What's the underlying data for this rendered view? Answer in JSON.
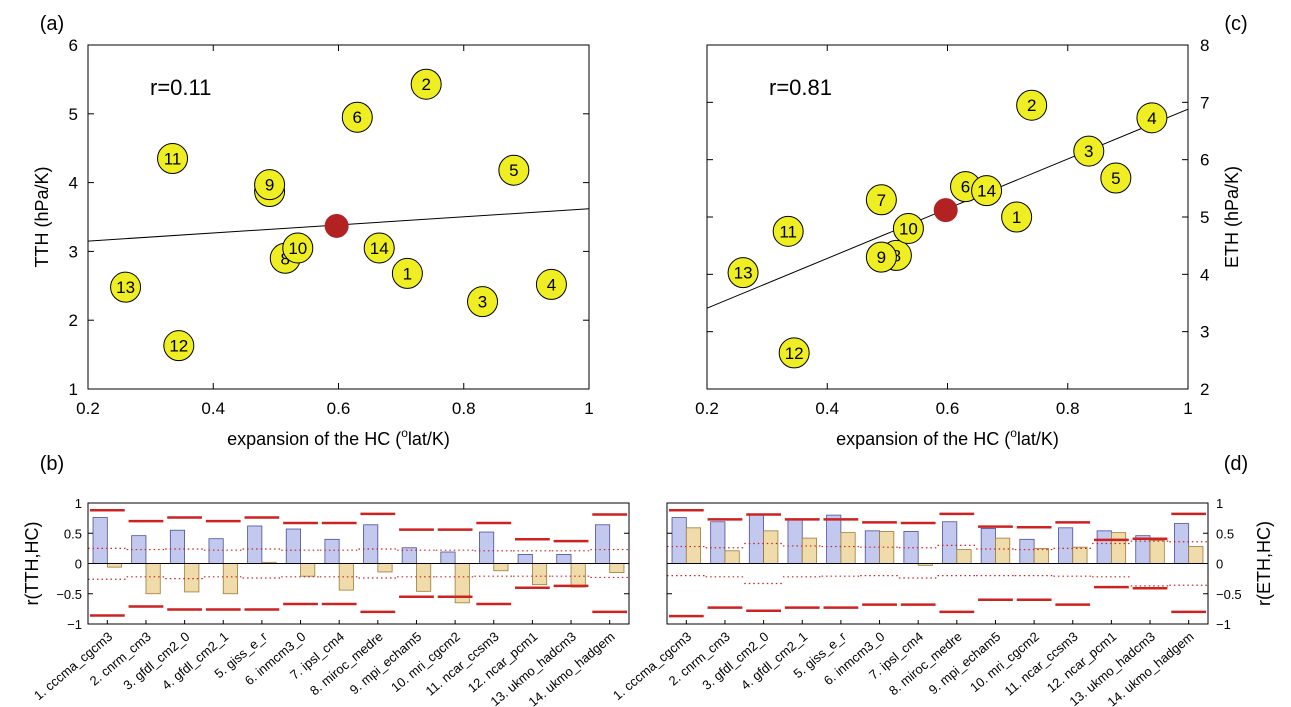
{
  "chart_data": [
    {
      "panel": "(a)",
      "type": "scatter",
      "xlabel": "expansion of the HC (",
      "xlabel_sup": "o",
      "xlabel_tail": "lat/K)",
      "ylabel": "TTH (hPa/K)",
      "xlim": [
        0.2,
        1
      ],
      "ylim": [
        1,
        6
      ],
      "xticks": [
        0.2,
        0.4,
        0.6,
        0.8,
        1
      ],
      "xtick_labels": [
        "0.2",
        "0.4",
        "0.6",
        "0.8",
        "1"
      ],
      "yticks": [
        1,
        2,
        3,
        4,
        5,
        6
      ],
      "ytick_labels": [
        "1",
        "2",
        "3",
        "4",
        "5",
        "6"
      ],
      "annotation": "r=0.11",
      "points": [
        {
          "label": "1",
          "x": 0.71,
          "y": 2.68
        },
        {
          "label": "2",
          "x": 0.74,
          "y": 5.43
        },
        {
          "label": "3",
          "x": 0.83,
          "y": 2.27
        },
        {
          "label": "4",
          "x": 0.94,
          "y": 2.52
        },
        {
          "label": "5",
          "x": 0.88,
          "y": 4.18
        },
        {
          "label": "6",
          "x": 0.63,
          "y": 4.95
        },
        {
          "label": "8",
          "x": 0.515,
          "y": 2.9
        },
        {
          "label": "",
          "x": 0.49,
          "y": 3.87
        },
        {
          "label": "9",
          "x": 0.49,
          "y": 3.97
        },
        {
          "label": "10",
          "x": 0.535,
          "y": 3.05
        },
        {
          "label": "11",
          "x": 0.335,
          "y": 4.35
        },
        {
          "label": "12",
          "x": 0.345,
          "y": 1.63
        },
        {
          "label": "13",
          "x": 0.26,
          "y": 2.48
        },
        {
          "label": "14",
          "x": 0.665,
          "y": 3.05
        }
      ],
      "mean_point": {
        "x": 0.597,
        "y": 3.37,
        "color": "#b22222"
      },
      "fit_line": {
        "x": [
          0.2,
          1
        ],
        "y": [
          3.15,
          3.62
        ]
      },
      "marker_color": "#eeee22"
    },
    {
      "panel": "(c)",
      "type": "scatter",
      "xlabel": "expansion of the HC (",
      "xlabel_sup": "o",
      "xlabel_tail": "lat/K)",
      "ylabel": "ETH (hPa/K)",
      "xlim": [
        0.2,
        1
      ],
      "ylim": [
        2,
        8
      ],
      "xticks": [
        0.2,
        0.4,
        0.6,
        0.8,
        1
      ],
      "xtick_labels": [
        "0.2",
        "0.4",
        "0.6",
        "0.8",
        "1"
      ],
      "yticks": [
        2,
        3,
        4,
        5,
        6,
        7,
        8
      ],
      "ytick_labels": [
        "2",
        "3",
        "4",
        "5",
        "6",
        "7",
        "8"
      ],
      "annotation": "r=0.81",
      "points": [
        {
          "label": "1",
          "x": 0.715,
          "y": 5.0
        },
        {
          "label": "2",
          "x": 0.74,
          "y": 6.95
        },
        {
          "label": "3",
          "x": 0.835,
          "y": 6.15
        },
        {
          "label": "4",
          "x": 0.94,
          "y": 6.73
        },
        {
          "label": "5",
          "x": 0.88,
          "y": 5.68
        },
        {
          "label": "6",
          "x": 0.63,
          "y": 5.53
        },
        {
          "label": "7",
          "x": 0.49,
          "y": 5.3
        },
        {
          "label": "8",
          "x": 0.515,
          "y": 4.33
        },
        {
          "label": "9",
          "x": 0.49,
          "y": 4.3
        },
        {
          "label": "10",
          "x": 0.535,
          "y": 4.8
        },
        {
          "label": "11",
          "x": 0.335,
          "y": 4.75
        },
        {
          "label": "12",
          "x": 0.345,
          "y": 2.63
        },
        {
          "label": "13",
          "x": 0.26,
          "y": 4.03
        },
        {
          "label": "14",
          "x": 0.665,
          "y": 5.46
        }
      ],
      "mean_point": {
        "x": 0.597,
        "y": 5.12,
        "color": "#b22222"
      },
      "fit_line": {
        "x": [
          0.2,
          1
        ],
        "y": [
          3.41,
          6.88
        ]
      },
      "marker_color": "#eeee22"
    },
    {
      "panel": "(b)",
      "type": "bar",
      "ylabel": "r(TTH,HC)",
      "ylim": [
        -1,
        1
      ],
      "yticks": [
        -1,
        -0.5,
        0,
        0.5,
        1
      ],
      "ytick_labels": [
        "−1",
        "−0.5",
        "0",
        "0.5",
        "1"
      ],
      "categories": [
        "1. cccma_cgcm3",
        "2. cnrm_cm3",
        "3. gfdl_cm2_0",
        "4. gfdl_cm2_1",
        "5. giss_e_r",
        "6. inmcm3_0",
        "7. ipsl_cm4",
        "8. miroc_medre",
        "9. mpi_echam5",
        "10. mri_cgcm2",
        "11. ncar_ccsm3",
        "12. ncar_pcm1",
        "13. ukmo_hadcm3",
        "14. ukmo_hadgem"
      ],
      "series": [
        {
          "values": [
            0.76,
            0.46,
            0.55,
            0.41,
            0.62,
            0.57,
            0.4,
            0.64,
            0.26,
            0.19,
            0.52,
            0.15,
            0.15,
            0.64
          ],
          "color": "#c3c9ee",
          "edge": "#4a4f9a"
        },
        {
          "values": [
            -0.06,
            -0.5,
            -0.47,
            -0.5,
            0.02,
            -0.21,
            -0.44,
            -0.14,
            -0.46,
            -0.65,
            -0.12,
            -0.35,
            -0.39,
            -0.15
          ],
          "color": "#efdcaa",
          "edge": "#a07a36"
        }
      ],
      "upper_bounds": [
        0.88,
        0.7,
        0.76,
        0.7,
        0.76,
        0.67,
        0.67,
        0.82,
        0.56,
        0.56,
        0.67,
        0.4,
        0.37,
        0.81
      ],
      "lower_bounds": [
        -0.86,
        -0.71,
        -0.76,
        -0.76,
        -0.76,
        -0.67,
        -0.67,
        -0.8,
        -0.55,
        -0.55,
        -0.67,
        -0.4,
        -0.37,
        -0.8
      ],
      "dotted_upper": [
        0.25,
        0.23,
        0.24,
        0.22,
        0.24,
        0.22,
        0.22,
        0.24,
        0.22,
        0.22,
        0.21,
        0.21,
        0.21,
        0.23
      ],
      "dotted_lower": [
        -0.26,
        -0.22,
        -0.25,
        -0.22,
        -0.24,
        -0.22,
        -0.22,
        -0.24,
        -0.22,
        -0.22,
        -0.21,
        -0.21,
        -0.21,
        -0.23
      ]
    },
    {
      "panel": "(d)",
      "type": "bar",
      "ylabel": "r(ETH,HC)",
      "ylim": [
        -1,
        1
      ],
      "yticks": [
        -1,
        -0.5,
        0,
        0.5,
        1
      ],
      "ytick_labels": [
        "−1",
        "−0.5",
        "0",
        "0.5",
        "1"
      ],
      "categories": [
        "1. cccma_cgcm3",
        "2. cnrm_cm3",
        "3. gfdl_cm2_0",
        "4. gfdl_cm2_1",
        "5. giss_e_r",
        "6. inmcm3_0",
        "7. ipsl_cm4",
        "8. miroc_medre",
        "9. mpi_echam5",
        "10. mri_cgcm2",
        "11. ncar_ccsm3",
        "12. ncar_pcm1",
        "13. ukmo_hadcm3",
        "14. ukmo_hadgem"
      ],
      "series": [
        {
          "values": [
            0.76,
            0.69,
            0.8,
            0.73,
            0.8,
            0.54,
            0.53,
            0.69,
            0.58,
            0.4,
            0.59,
            0.54,
            0.46,
            0.66
          ],
          "color": "#c3c9ee",
          "edge": "#4a4f9a"
        },
        {
          "values": [
            0.59,
            0.21,
            0.54,
            0.42,
            0.51,
            0.53,
            -0.03,
            0.23,
            0.42,
            0.25,
            0.27,
            0.51,
            0.38,
            0.28
          ],
          "color": "#efdcaa",
          "edge": "#a07a36"
        }
      ],
      "upper_bounds": [
        0.88,
        0.73,
        0.81,
        0.73,
        0.73,
        0.68,
        0.67,
        0.82,
        0.61,
        0.6,
        0.68,
        0.39,
        0.41,
        0.82
      ],
      "lower_bounds": [
        -0.87,
        -0.73,
        -0.78,
        -0.73,
        -0.73,
        -0.68,
        -0.68,
        -0.8,
        -0.6,
        -0.6,
        -0.68,
        -0.39,
        -0.41,
        -0.8
      ],
      "dotted_upper": [
        0.28,
        0.26,
        0.33,
        0.29,
        0.28,
        0.27,
        0.26,
        0.3,
        0.24,
        0.23,
        0.25,
        0.33,
        0.37,
        0.36
      ],
      "dotted_lower": [
        -0.2,
        -0.22,
        -0.33,
        -0.22,
        -0.21,
        -0.2,
        -0.24,
        -0.2,
        -0.2,
        -0.2,
        -0.21,
        -0.22,
        -0.37,
        -0.36
      ]
    }
  ]
}
